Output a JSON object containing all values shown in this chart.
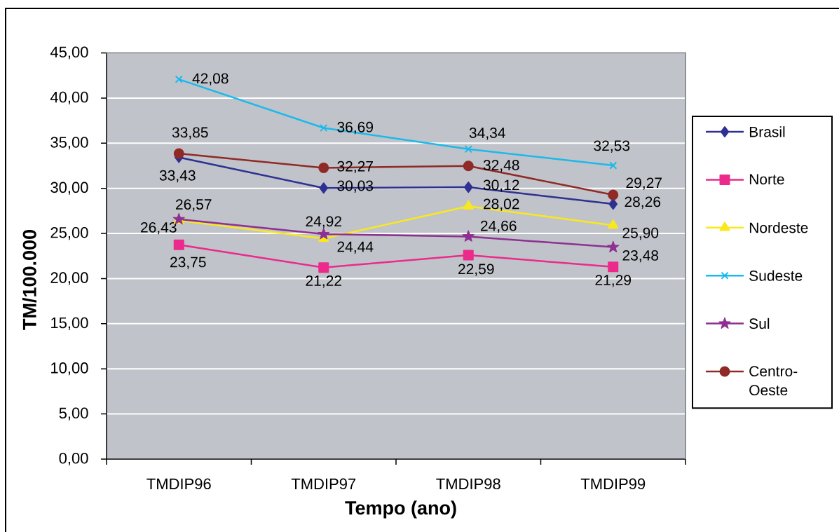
{
  "chart_data": {
    "type": "line",
    "xlabel": "Tempo (ano)",
    "ylabel": "TM/100.000",
    "categories": [
      "TMDIP96",
      "TMDIP97",
      "TMDIP98",
      "TMDIP99"
    ],
    "series": [
      {
        "name": "Brasil",
        "color": "#2e3192",
        "marker": "diamond",
        "values": [
          33.43,
          30.03,
          30.12,
          28.26
        ],
        "value_labels": [
          "33,43",
          "30,03",
          "30,12",
          "28,26"
        ]
      },
      {
        "name": "Norte",
        "color": "#ec2a8c",
        "marker": "square",
        "values": [
          23.75,
          21.22,
          22.59,
          21.29
        ],
        "value_labels": [
          "23,75",
          "21,22",
          "22,59",
          "21,29"
        ]
      },
      {
        "name": "Nordeste",
        "color": "#f9e91c",
        "marker": "triangle",
        "values": [
          26.43,
          24.44,
          28.02,
          25.9
        ],
        "value_labels": [
          "26,43",
          "24,44",
          "28,02",
          "25,90"
        ]
      },
      {
        "name": "Sudeste",
        "color": "#1bb9ec",
        "marker": "cross",
        "values": [
          42.08,
          36.69,
          34.34,
          32.53
        ],
        "value_labels": [
          "42,08",
          "36,69",
          "34,34",
          "32,53"
        ]
      },
      {
        "name": "Sul",
        "color": "#8e3091",
        "marker": "star",
        "values": [
          26.57,
          24.92,
          24.66,
          23.48
        ],
        "value_labels": [
          "26,57",
          "24,92",
          "24,66",
          "23,48"
        ]
      },
      {
        "name": "Centro-Oeste",
        "color": "#8f2a26",
        "marker": "circle",
        "values": [
          33.85,
          32.27,
          32.48,
          29.27
        ],
        "value_labels": [
          "33,85",
          "32,27",
          "32,48",
          "29,27"
        ]
      }
    ],
    "ylim": [
      0,
      45
    ],
    "yticks": [
      {
        "value": 0,
        "label": "0,00"
      },
      {
        "value": 5,
        "label": "5,00"
      },
      {
        "value": 10,
        "label": "10,00"
      },
      {
        "value": 15,
        "label": "15,00"
      },
      {
        "value": 20,
        "label": "20,00"
      },
      {
        "value": 25,
        "label": "25,00"
      },
      {
        "value": 30,
        "label": "30,00"
      },
      {
        "value": 35,
        "label": "35,00"
      },
      {
        "value": 40,
        "label": "40,00"
      },
      {
        "value": 45,
        "label": "45,00"
      }
    ],
    "grid": "y",
    "legend": "right"
  }
}
